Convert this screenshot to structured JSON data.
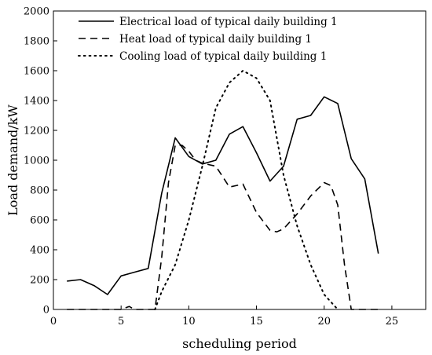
{
  "chart_data": {
    "type": "line",
    "title": "",
    "xlabel": "scheduling period",
    "ylabel": "Load demand/kW",
    "xlim": [
      0,
      27.5
    ],
    "ylim": [
      0,
      2000
    ],
    "xticks": [
      0,
      5,
      10,
      15,
      20,
      25
    ],
    "yticks": [
      0,
      200,
      400,
      600,
      800,
      1000,
      1200,
      1400,
      1600,
      1800,
      2000
    ],
    "grid": false,
    "legend_position": "top-right",
    "series": [
      {
        "name": "Electrical load of typical daily building 1",
        "style": "solid",
        "x": [
          1,
          2,
          3,
          4,
          5,
          6,
          7,
          8,
          9,
          10,
          11,
          12,
          13,
          14,
          15,
          16,
          17,
          18,
          19,
          20,
          21,
          22,
          23,
          24
        ],
        "y": [
          190,
          200,
          160,
          100,
          225,
          250,
          275,
          780,
          1150,
          1025,
          975,
          1000,
          1175,
          1225,
          1050,
          860,
          960,
          1275,
          1300,
          1425,
          1380,
          1010,
          875,
          375
        ]
      },
      {
        "name": "Heat load of typical daily building 1",
        "style": "dashed",
        "x": [
          1,
          2,
          3,
          4,
          5,
          5.6,
          6,
          7,
          7.5,
          8,
          8.5,
          9,
          9.5,
          10,
          10.5,
          11,
          12,
          13,
          14,
          15,
          16,
          16.5,
          17,
          18,
          19,
          20,
          20.5,
          21,
          21.5,
          22,
          23,
          24
        ],
        "y": [
          0,
          0,
          0,
          0,
          0,
          20,
          0,
          0,
          0,
          350,
          850,
          1100,
          1100,
          1060,
          1000,
          980,
          960,
          820,
          840,
          650,
          530,
          520,
          540,
          640,
          760,
          850,
          830,
          700,
          300,
          0,
          0,
          0
        ]
      },
      {
        "name": "Cooling load of typical daily building 1",
        "style": "dotted",
        "x": [
          7.5,
          8,
          9,
          10,
          11,
          12,
          13,
          14,
          15,
          16,
          17,
          18,
          19,
          20,
          21
        ],
        "y": [
          0,
          120,
          300,
          600,
          960,
          1350,
          1520,
          1600,
          1550,
          1400,
          900,
          560,
          300,
          100,
          0
        ]
      }
    ]
  }
}
